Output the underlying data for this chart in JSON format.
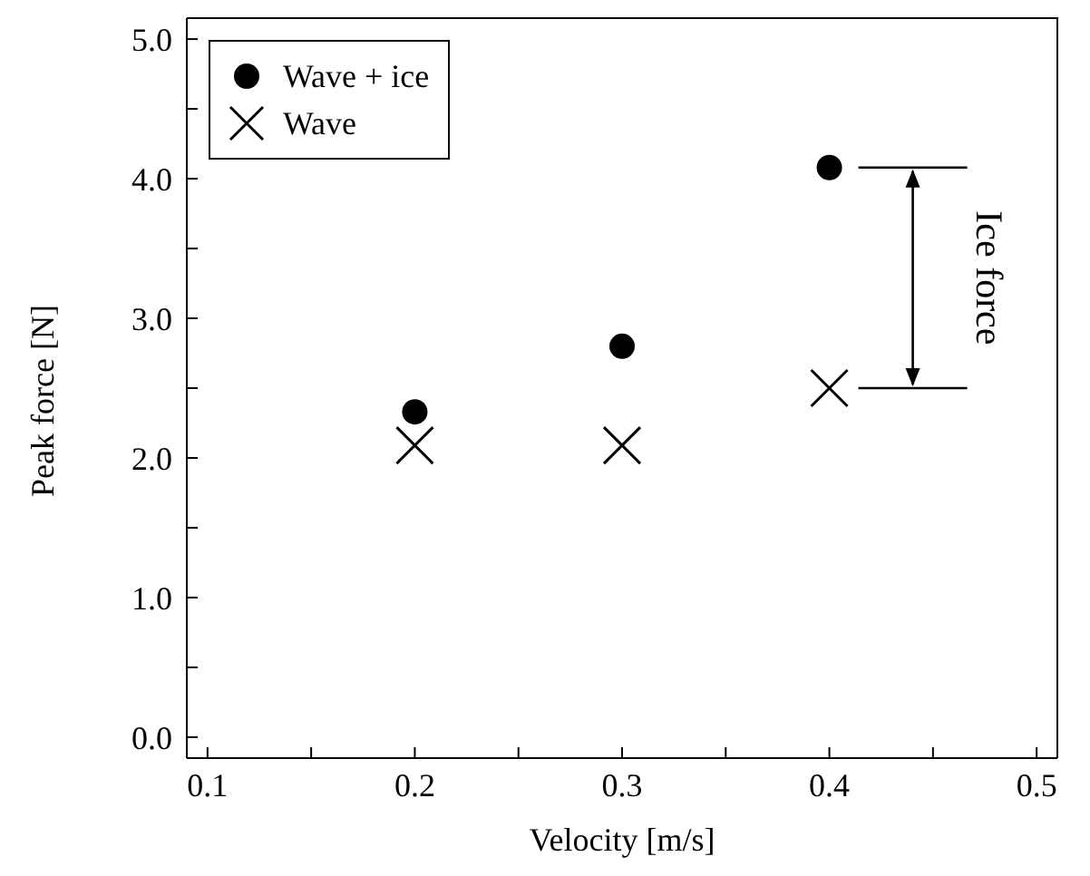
{
  "chart_data": {
    "type": "scatter",
    "xlabel": "Velocity [m/s]",
    "ylabel": "Peak force [N]",
    "x": [
      0.2,
      0.3,
      0.4
    ],
    "series": [
      {
        "name": "Wave + ice",
        "color": "#000000",
        "marker": "circle",
        "values": [
          2.33,
          2.8,
          4.08
        ]
      },
      {
        "name": "Wave",
        "color": "#000000",
        "marker": "cross",
        "values": [
          2.09,
          2.09,
          2.5
        ]
      }
    ],
    "xlim": [
      0.09,
      0.51
    ],
    "ylim": [
      -0.15,
      5.15
    ],
    "xticks": [
      0.1,
      {
        "value": 0.15,
        "label": null
      },
      0.2,
      {
        "value": 0.25,
        "label": null
      },
      0.3,
      {
        "value": 0.35,
        "label": null
      },
      0.4,
      {
        "value": 0.45,
        "label": null
      },
      0.5
    ],
    "yticks": [
      {
        "value": 0,
        "label": "0.0"
      },
      {
        "value": 0.5,
        "label": null
      },
      {
        "value": 1,
        "label": "1.0"
      },
      {
        "value": 1.5,
        "label": null
      },
      {
        "value": 2,
        "label": "2.0"
      },
      {
        "value": 2.5,
        "label": null
      },
      {
        "value": 3,
        "label": "3.0"
      },
      {
        "value": 3.5,
        "label": null
      },
      {
        "value": 4,
        "label": "4.0"
      },
      {
        "value": 4.5,
        "label": null
      },
      {
        "value": 5,
        "label": "5.0"
      }
    ],
    "annotations": [
      "Ice force"
    ],
    "legend": "top left",
    "grid": false
  }
}
